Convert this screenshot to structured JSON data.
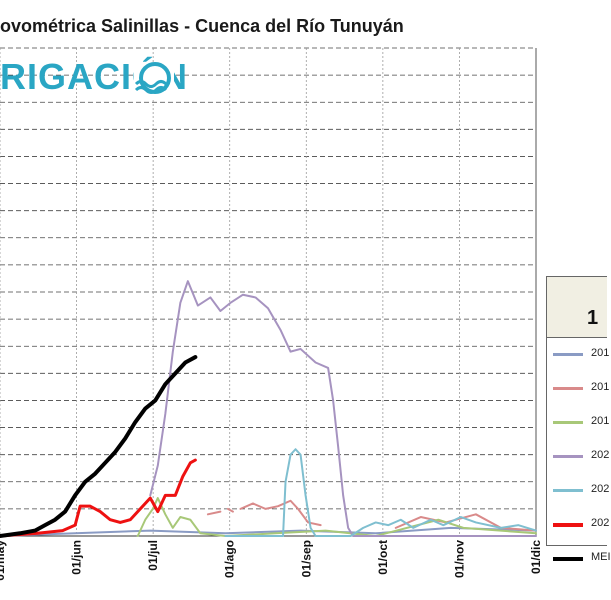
{
  "header": {
    "title": "ovométrica Salinillas - Cuenca del Río Tunuyán",
    "logo_text": "RIGACIÓN"
  },
  "legend": {
    "header_text": "1",
    "items": [
      {
        "label": "201",
        "color": "#8a9bc4"
      },
      {
        "label": "201",
        "color": "#d98a8a"
      },
      {
        "label": "201",
        "color": "#a8c878"
      },
      {
        "label": "202",
        "color": "#a693c0"
      },
      {
        "label": "202",
        "color": "#7fbfd0"
      },
      {
        "label": "202",
        "color": "#ee1111"
      },
      {
        "label": "MEI",
        "color": "#000000"
      }
    ]
  },
  "chart_data": {
    "type": "line",
    "title": "ovométrica Salinillas - Cuenca del Río Tunuyán",
    "xlabel": "",
    "ylabel": "",
    "x_ticks": [
      "01/may",
      "01/jun",
      "01/jul",
      "01/ago",
      "01/sep",
      "01/oct",
      "01/nov",
      "01/dic"
    ],
    "xlim": [
      0,
      214
    ],
    "ylim": [
      0,
      18
    ],
    "grid": true,
    "legend_position": "right",
    "series": [
      {
        "name": "201",
        "color": "#8a9bc4",
        "width": 2,
        "points": [
          [
            0,
            0
          ],
          [
            30,
            0.1
          ],
          [
            60,
            0.2
          ],
          [
            90,
            0.1
          ],
          [
            120,
            0.2
          ],
          [
            150,
            0.1
          ],
          [
            180,
            0.3
          ],
          [
            214,
            0.2
          ]
        ]
      },
      {
        "name": "201",
        "color": "#d98a8a",
        "width": 2,
        "segments": [
          [
            [
              83,
              0.8
            ],
            [
              88,
              0.9
            ]
          ],
          [
            [
              91,
              1.0
            ],
            [
              93,
              0.9
            ]
          ],
          [
            [
              96,
              1.0
            ],
            [
              101,
              1.2
            ],
            [
              106,
              1.0
            ],
            [
              111,
              1.1
            ],
            [
              116,
              1.3
            ],
            [
              119,
              1.0
            ],
            [
              123,
              0.5
            ],
            [
              128,
              0.4
            ]
          ],
          [
            [
              158,
              0.3
            ],
            [
              168,
              0.7
            ],
            [
              178,
              0.5
            ],
            [
              190,
              0.8
            ],
            [
              200,
              0.3
            ],
            [
              214,
              0.2
            ]
          ]
        ]
      },
      {
        "name": "201",
        "color": "#a8c878",
        "width": 2,
        "points": [
          [
            55,
            0
          ],
          [
            58,
            0.6
          ],
          [
            61,
            1.0
          ],
          [
            63,
            1.4
          ],
          [
            66,
            0.8
          ],
          [
            69,
            0.3
          ],
          [
            72,
            0.7
          ],
          [
            76,
            0.6
          ],
          [
            80,
            0.1
          ],
          [
            90,
            0.0
          ],
          [
            110,
            0.1
          ],
          [
            130,
            0.2
          ],
          [
            150,
            0.0
          ],
          [
            175,
            0.6
          ],
          [
            185,
            0.3
          ],
          [
            214,
            0.1
          ]
        ]
      },
      {
        "name": "202",
        "color": "#a693c0",
        "width": 2,
        "points": [
          [
            60,
            1.5
          ],
          [
            63,
            2.6
          ],
          [
            66,
            4.5
          ],
          [
            69,
            6.8
          ],
          [
            72,
            8.6
          ],
          [
            75,
            9.4
          ],
          [
            79,
            8.5
          ],
          [
            84,
            8.8
          ],
          [
            88,
            8.3
          ],
          [
            92,
            8.6
          ],
          [
            97,
            8.9
          ],
          [
            102,
            8.8
          ],
          [
            107,
            8.4
          ],
          [
            112,
            7.6
          ],
          [
            116,
            6.8
          ],
          [
            120,
            6.9
          ],
          [
            126,
            6.4
          ],
          [
            131,
            6.2
          ],
          [
            133,
            5.0
          ],
          [
            135,
            3.3
          ],
          [
            137,
            1.5
          ],
          [
            139,
            0.3
          ],
          [
            141,
            0.0
          ],
          [
            160,
            0.0
          ],
          [
            214,
            0.0
          ]
        ]
      },
      {
        "name": "202",
        "color": "#7fbfd0",
        "width": 2,
        "points": [
          [
            90,
            0
          ],
          [
            113,
            0
          ],
          [
            114,
            2.0
          ],
          [
            116,
            3.0
          ],
          [
            118,
            3.2
          ],
          [
            120,
            3.0
          ],
          [
            122,
            1.5
          ],
          [
            124,
            0.3
          ],
          [
            126,
            0
          ],
          [
            140,
            0
          ],
          [
            145,
            0.3
          ],
          [
            150,
            0.5
          ],
          [
            155,
            0.4
          ],
          [
            160,
            0.6
          ],
          [
            165,
            0.3
          ],
          [
            172,
            0.6
          ],
          [
            177,
            0.4
          ],
          [
            184,
            0.7
          ],
          [
            190,
            0.5
          ],
          [
            200,
            0.3
          ],
          [
            207,
            0.4
          ],
          [
            214,
            0.2
          ]
        ]
      },
      {
        "name": "202",
        "color": "#ee1111",
        "width": 3,
        "points": [
          [
            0,
            0
          ],
          [
            15,
            0.1
          ],
          [
            25,
            0.2
          ],
          [
            30,
            0.4
          ],
          [
            32,
            1.1
          ],
          [
            36,
            1.1
          ],
          [
            40,
            0.9
          ],
          [
            44,
            0.6
          ],
          [
            48,
            0.5
          ],
          [
            52,
            0.6
          ],
          [
            56,
            1.0
          ],
          [
            60,
            1.4
          ],
          [
            63,
            0.9
          ],
          [
            66,
            1.5
          ],
          [
            70,
            1.5
          ],
          [
            73,
            2.2
          ],
          [
            76,
            2.7
          ],
          [
            78,
            2.8
          ]
        ]
      },
      {
        "name": "MEI",
        "color": "#000000",
        "width": 4,
        "points": [
          [
            0,
            0
          ],
          [
            8,
            0.1
          ],
          [
            14,
            0.2
          ],
          [
            18,
            0.4
          ],
          [
            22,
            0.6
          ],
          [
            26,
            0.9
          ],
          [
            30,
            1.5
          ],
          [
            34,
            2.0
          ],
          [
            38,
            2.3
          ],
          [
            42,
            2.7
          ],
          [
            46,
            3.1
          ],
          [
            50,
            3.6
          ],
          [
            54,
            4.2
          ],
          [
            58,
            4.7
          ],
          [
            62,
            5.0
          ],
          [
            66,
            5.6
          ],
          [
            70,
            6.0
          ],
          [
            74,
            6.4
          ],
          [
            78,
            6.6
          ]
        ]
      }
    ]
  }
}
